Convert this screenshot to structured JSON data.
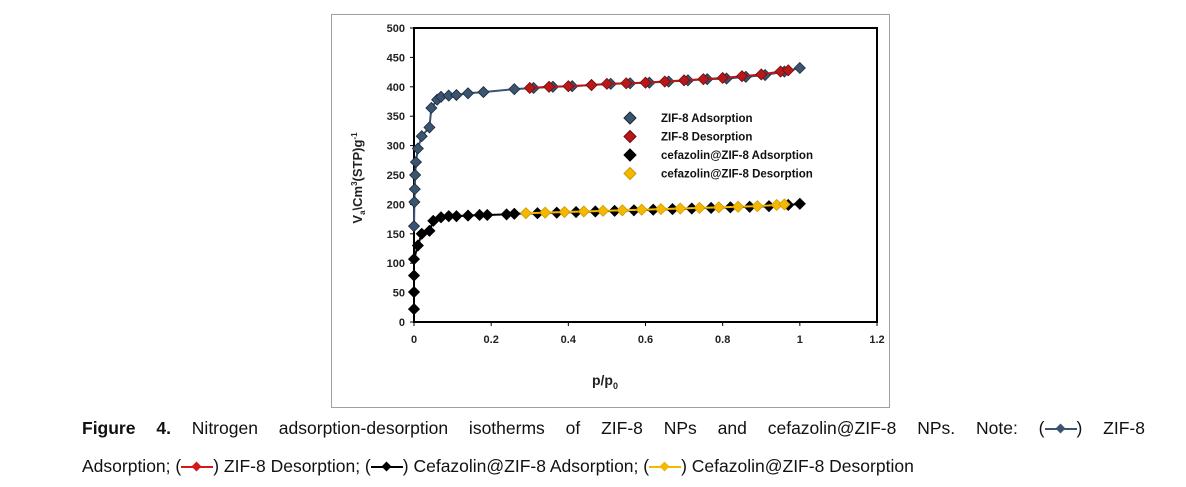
{
  "chart_data": {
    "type": "scatter",
    "xlabel_main": "p/p",
    "xlabel_sub": "0",
    "ylabel_parts": [
      "V",
      "a",
      "\\Cm",
      "3",
      "(STP)g",
      "-1"
    ],
    "xlim": [
      0,
      1.2
    ],
    "ylim": [
      0,
      500
    ],
    "xticks": [
      "0",
      "0.2",
      "0.4",
      "0.6",
      "0.8",
      "1",
      "1.2"
    ],
    "yticks": [
      "0",
      "50",
      "100",
      "150",
      "200",
      "250",
      "300",
      "350",
      "400",
      "450",
      "500"
    ],
    "legend_position": "center-right",
    "series": [
      {
        "name": "ZIF-8 Adsorption",
        "color": "#3b5470",
        "x": [
          0,
          0.001,
          0.002,
          0.003,
          0.005,
          0.01,
          0.02,
          0.04,
          0.045,
          0.06,
          0.07,
          0.09,
          0.11,
          0.14,
          0.18,
          0.26,
          0.31,
          0.36,
          0.41,
          0.46,
          0.51,
          0.56,
          0.61,
          0.66,
          0.71,
          0.76,
          0.81,
          0.86,
          0.91,
          0.96,
          1.0
        ],
        "y": [
          163,
          204,
          226,
          250,
          272,
          295,
          316,
          331,
          364,
          378,
          383,
          385,
          386,
          389,
          391,
          396,
          398,
          400,
          401,
          403,
          405,
          406,
          407,
          409,
          411,
          413,
          414,
          417,
          420,
          426,
          432
        ]
      },
      {
        "name": "ZIF-8 Desorption",
        "color": "#b8181a",
        "x": [
          0.3,
          0.35,
          0.4,
          0.46,
          0.5,
          0.55,
          0.6,
          0.65,
          0.7,
          0.75,
          0.8,
          0.85,
          0.9,
          0.95,
          0.97
        ],
        "y": [
          398,
          400,
          401,
          403,
          405,
          406,
          407,
          409,
          411,
          413,
          415,
          418,
          421,
          426,
          428
        ]
      },
      {
        "name": "cefazolin@ZIF-8 Adsorption",
        "color": "#000000",
        "x": [
          0,
          0,
          0,
          0,
          0.01,
          0.02,
          0.04,
          0.05,
          0.07,
          0.09,
          0.11,
          0.14,
          0.17,
          0.19,
          0.24,
          0.26,
          0.32,
          0.37,
          0.42,
          0.47,
          0.52,
          0.57,
          0.62,
          0.67,
          0.72,
          0.77,
          0.82,
          0.87,
          0.92,
          0.97,
          1.0
        ],
        "y": [
          22,
          51,
          79,
          107,
          130,
          150,
          155,
          172,
          178,
          180,
          180,
          181,
          182,
          182,
          183,
          184,
          185,
          186,
          187,
          188,
          189,
          190,
          191,
          192,
          193,
          194,
          195,
          196,
          197,
          199,
          201
        ]
      },
      {
        "name": "cefazolin@ZIF-8 Desorption",
        "color": "#f5b800",
        "x": [
          0.29,
          0.34,
          0.39,
          0.44,
          0.49,
          0.54,
          0.59,
          0.64,
          0.69,
          0.74,
          0.79,
          0.84,
          0.89,
          0.94,
          0.96
        ],
        "y": [
          185,
          186,
          187,
          188,
          189,
          190,
          191,
          192,
          193,
          194,
          195,
          196,
          197,
          199,
          200
        ]
      }
    ]
  },
  "caption": {
    "figure_label": "Figure 4.",
    "line1_text": "Nitrogen adsorption-desorption isotherms of ZIF-8 NPs and cefazolin@ZIF-8 NPs. Note: (",
    "line1_end": ") ZIF-8",
    "line2_a": "Adsorption; (",
    "line2_b": ") ZIF-8 Desorption; (",
    "line2_c": ") Cefazolin@ZIF-8 Adsorption; (",
    "line2_d": ") Cefazolin@ZIF-8 Desorption"
  }
}
